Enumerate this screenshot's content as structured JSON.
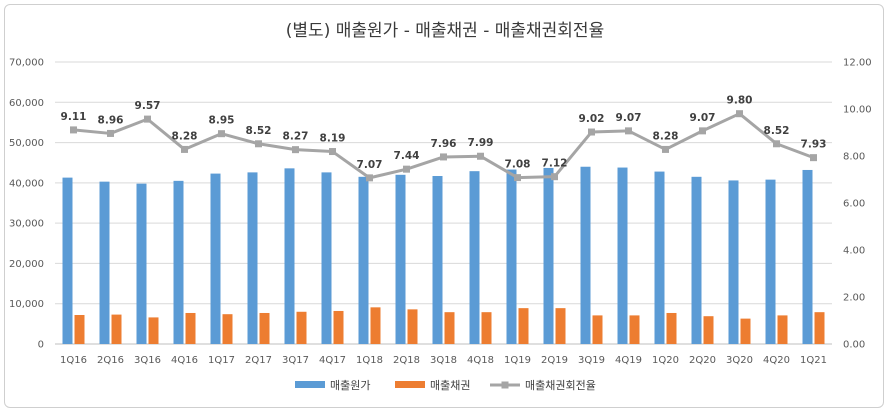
{
  "chart_data": {
    "type": "bar",
    "title": "(별도) 매출원가 - 매출채권 - 매출채권회전율",
    "categories": [
      "1Q16",
      "2Q16",
      "3Q16",
      "4Q16",
      "1Q17",
      "2Q17",
      "3Q17",
      "4Q17",
      "1Q18",
      "2Q18",
      "3Q18",
      "4Q18",
      "1Q19",
      "2Q19",
      "3Q19",
      "4Q19",
      "1Q20",
      "2Q20",
      "3Q20",
      "4Q20",
      "1Q21"
    ],
    "y_left": {
      "ticks": [
        "0",
        "10,000",
        "20,000",
        "30,000",
        "40,000",
        "50,000",
        "60,000",
        "70,000"
      ],
      "range": [
        0,
        70000
      ]
    },
    "y_right": {
      "ticks": [
        "0.00",
        "2.00",
        "4.00",
        "6.00",
        "8.00",
        "10.00",
        "12.00"
      ],
      "range": [
        0,
        12
      ]
    },
    "grid": true,
    "legend_position": "bottom",
    "series": [
      {
        "name": "매출원가",
        "type": "bar",
        "axis": "left",
        "color": "#5b9bd5",
        "values": [
          41300,
          40300,
          39800,
          40500,
          42300,
          42600,
          43600,
          42600,
          41500,
          42000,
          41700,
          42900,
          43300,
          43700,
          44000,
          43800,
          42800,
          41500,
          40600,
          40800,
          43200
        ]
      },
      {
        "name": "매출채권",
        "type": "bar",
        "axis": "left",
        "color": "#ed7d31",
        "values": [
          7200,
          7300,
          6600,
          7700,
          7400,
          7700,
          8000,
          8200,
          9100,
          8600,
          7900,
          7900,
          8900,
          8900,
          7100,
          7100,
          7700,
          6900,
          6300,
          7100,
          7900
        ]
      },
      {
        "name": "매출채권회전율",
        "type": "line",
        "axis": "right",
        "color": "#a5a5a5",
        "values": [
          9.11,
          8.96,
          9.57,
          8.28,
          8.95,
          8.52,
          8.27,
          8.19,
          7.07,
          7.44,
          7.96,
          7.99,
          7.08,
          7.12,
          9.02,
          9.07,
          8.28,
          9.07,
          9.8,
          8.52,
          7.93
        ],
        "labels": [
          "9.11",
          "8.96",
          "9.57",
          "8.28",
          "8.95",
          "8.52",
          "8.27",
          "8.19",
          "7.07",
          "7.44",
          "7.96",
          "7.99",
          "7.08",
          "7.12",
          "9.02",
          "9.07",
          "8.28",
          "9.07",
          "9.80",
          "8.52",
          "7.93"
        ]
      }
    ]
  }
}
